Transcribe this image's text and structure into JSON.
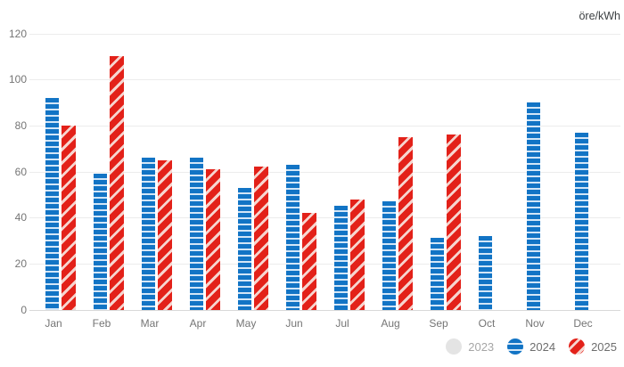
{
  "chart_data": {
    "type": "bar",
    "unit": "öre/kWh",
    "categories": [
      "Jan",
      "Feb",
      "Mar",
      "Apr",
      "May",
      "Jun",
      "Jul",
      "Aug",
      "Sep",
      "Oct",
      "Nov",
      "Dec"
    ],
    "series": [
      {
        "name": "2023",
        "enabled": false,
        "pattern": "solid",
        "color": "#e4e4e4",
        "stripe_color": "#e4e4e4",
        "values": [
          null,
          null,
          null,
          null,
          null,
          null,
          null,
          null,
          null,
          null,
          null,
          null
        ]
      },
      {
        "name": "2024",
        "enabled": true,
        "pattern": "horizontal-stripes",
        "color": "#1274c5",
        "stripe_color": "#d3e6f7",
        "values": [
          92,
          59,
          66,
          66,
          53,
          63,
          45,
          47,
          31,
          32,
          90,
          77
        ]
      },
      {
        "name": "2025",
        "enabled": true,
        "pattern": "diagonal-stripes",
        "color": "#e32119",
        "stripe_color": "#f6d5cf",
        "values": [
          80,
          110,
          65,
          61,
          62,
          42,
          48,
          75,
          76,
          null,
          null,
          null
        ]
      }
    ],
    "ylim": [
      0,
      120
    ],
    "ytick_step": 20,
    "grid": true,
    "legend_position": "bottom-right"
  }
}
